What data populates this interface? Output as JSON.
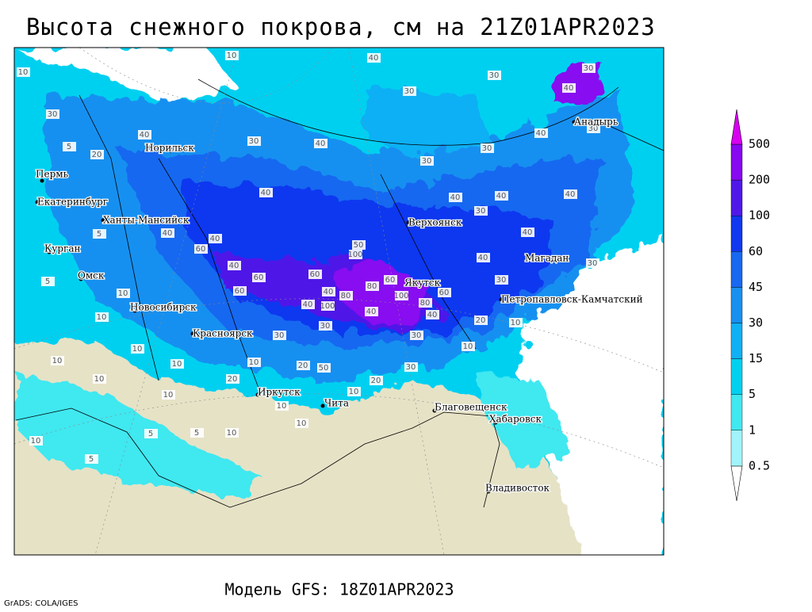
{
  "header": {
    "title": "Высота снежного покрова, см на 21Z01APR2023"
  },
  "footer": {
    "model": "Модель GFS: 18Z01APR2023",
    "credit": "GrADS: COLA/IGES"
  },
  "legend": {
    "levels": [
      0.5,
      1,
      5,
      15,
      30,
      45,
      60,
      100,
      200,
      500
    ],
    "colors": [
      "#ffffff",
      "#a0f4fa",
      "#40e8f0",
      "#00d0f0",
      "#10b0f4",
      "#1890f0",
      "#1868f0",
      "#1038f0",
      "#5018e8",
      "#8808f0",
      "#d800f0"
    ]
  },
  "map": {
    "cities": [
      "Норильск",
      "Пермь",
      "Екатеринбург",
      "Ханты-Мансийск",
      "Курган",
      "Омск",
      "Новосибирск",
      "Красноярск",
      "Иркутск",
      "Чита",
      "Верхоянск",
      "Якутск",
      "Магадан",
      "Петропавловск-Камчатский",
      "Анадырь",
      "Благовещенск",
      "Хабаровск",
      "Владивосток"
    ],
    "contour_labels": [
      10,
      10,
      40,
      30,
      30,
      30,
      30,
      40,
      30,
      40,
      30,
      40,
      30,
      40,
      40,
      40,
      40,
      30,
      40,
      40,
      40,
      50,
      60,
      40,
      100,
      60,
      60,
      40,
      80,
      60,
      60,
      60,
      100,
      80,
      40,
      100,
      80,
      40,
      40,
      20,
      10,
      30,
      30,
      30,
      10,
      10,
      10,
      10,
      20,
      50,
      20,
      30,
      20,
      10,
      10,
      10,
      10,
      10,
      10,
      10,
      5,
      5,
      10,
      5,
      10,
      10,
      5,
      5,
      5,
      20,
      30,
      40,
      40,
      30,
      30
    ]
  }
}
